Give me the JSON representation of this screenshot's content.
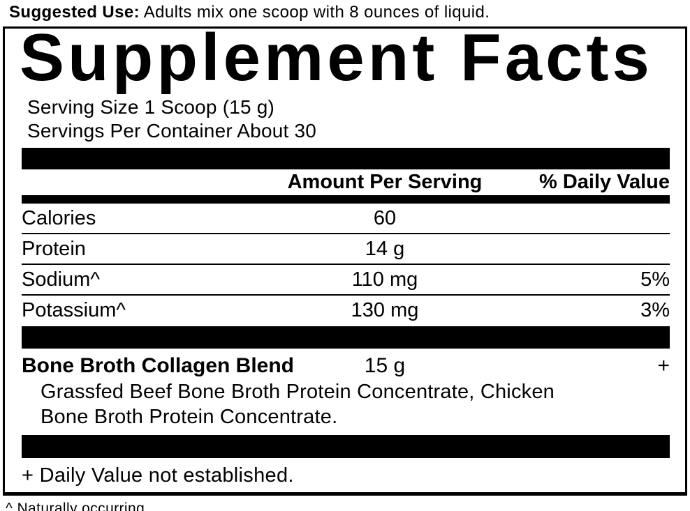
{
  "colors": {
    "ink": "#000000",
    "background": "#ffffff"
  },
  "suggested_use": {
    "label": "Suggested Use:",
    "text": " Adults mix one scoop with 8 ounces of liquid."
  },
  "panel": {
    "title": "Supplement Facts",
    "serving_size": "Serving Size 1 Scoop (15 g)",
    "servings_per_container": "Servings Per Container About 30",
    "columns": {
      "amount_header": "Amount Per Serving",
      "dv_header": "% Daily Value"
    },
    "nutrients": [
      {
        "name": "Calories",
        "amount": "60",
        "dv": ""
      },
      {
        "name": "Protein",
        "amount": "14 g",
        "dv": ""
      },
      {
        "name": "Sodium^",
        "amount": "110 mg",
        "dv": "5%"
      },
      {
        "name": "Potassium^",
        "amount": "130 mg",
        "dv": "3%"
      }
    ],
    "blend": {
      "name": "Bone Broth Collagen Blend",
      "amount": "15 g",
      "dv": "+",
      "ingredients_line1": "Grassfed Beef Bone Broth Protein Concentrate, Chicken",
      "ingredients_line2": "Bone Broth Protein Concentrate."
    },
    "footnote_dv": "+ Daily Value not established."
  },
  "footnote_natural": "^ Naturally occurring."
}
